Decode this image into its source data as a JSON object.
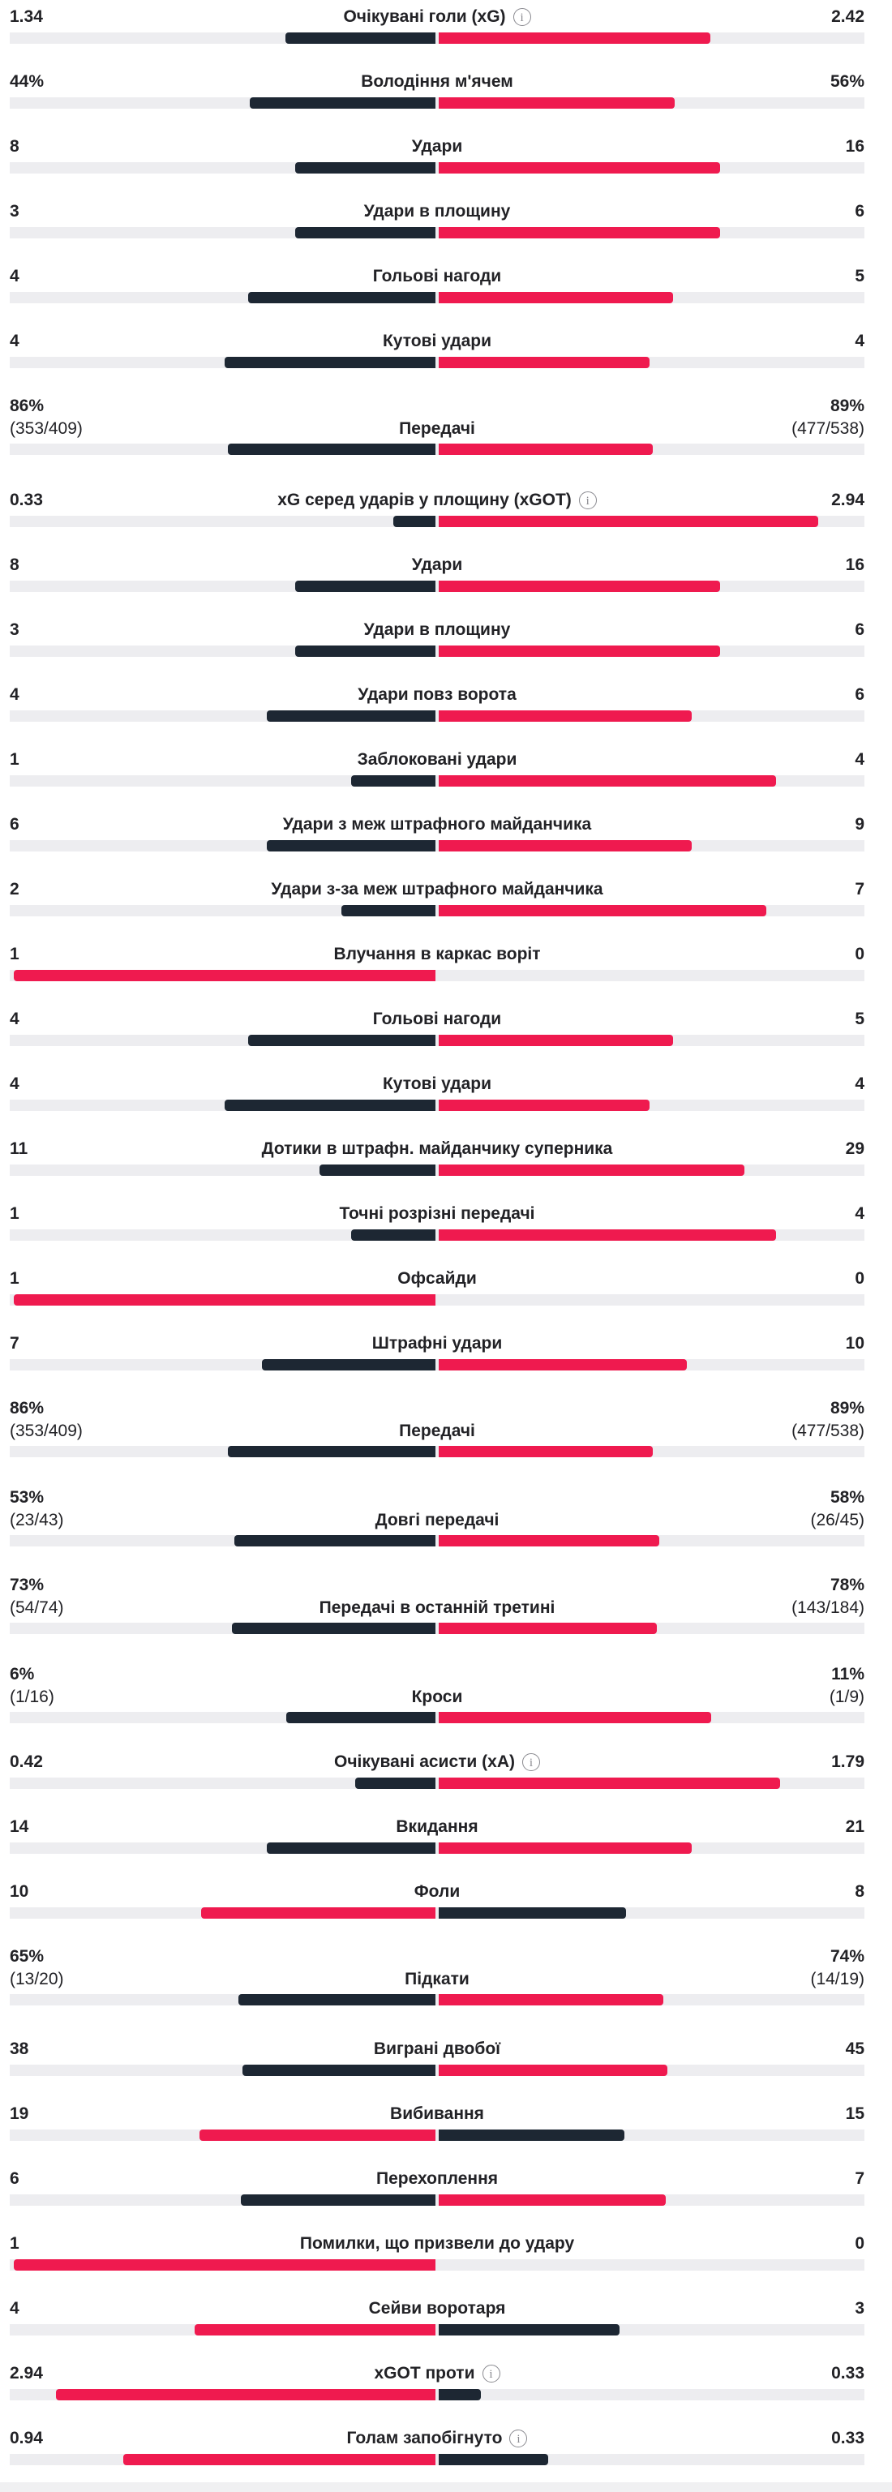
{
  "colors": {
    "home": "#1d2733",
    "away": "#ef1a4f",
    "track": "#ededf0"
  },
  "stats": [
    {
      "label": "Очікувані голи (xG)",
      "info": true,
      "home": "1.34",
      "away": "2.42",
      "hv": 1.34,
      "av": 2.42
    },
    {
      "label": "Володіння м'ячем",
      "home": "44%",
      "away": "56%",
      "hv": 44,
      "av": 56
    },
    {
      "label": "Удари",
      "home": "8",
      "away": "16",
      "hv": 8,
      "av": 16
    },
    {
      "label": "Удари в площину",
      "home": "3",
      "away": "6",
      "hv": 3,
      "av": 6
    },
    {
      "label": "Гольові нагоди",
      "home": "4",
      "away": "5",
      "hv": 4,
      "av": 5
    },
    {
      "label": "Кутові удари",
      "home": "4",
      "away": "4",
      "hv": 4,
      "av": 4
    },
    {
      "label": "Передачі",
      "home": "86%",
      "home_sub": "(353/409)",
      "away": "89%",
      "away_sub": "(477/538)",
      "hv": 86,
      "av": 89
    },
    {
      "label": "xG серед ударів у площину (xGOT)",
      "info": true,
      "home": "0.33",
      "away": "2.94",
      "hv": 0.33,
      "av": 2.94
    },
    {
      "label": "Удари",
      "home": "8",
      "away": "16",
      "hv": 8,
      "av": 16
    },
    {
      "label": "Удари в площину",
      "home": "3",
      "away": "6",
      "hv": 3,
      "av": 6
    },
    {
      "label": "Удари повз ворота",
      "home": "4",
      "away": "6",
      "hv": 4,
      "av": 6
    },
    {
      "label": "Заблоковані удари",
      "home": "1",
      "away": "4",
      "hv": 1,
      "av": 4
    },
    {
      "label": "Удари з меж штрафного майданчика",
      "home": "6",
      "away": "9",
      "hv": 6,
      "av": 9
    },
    {
      "label": "Удари з-за меж штрафного майданчика",
      "home": "2",
      "away": "7",
      "hv": 2,
      "av": 7
    },
    {
      "label": "Влучання в каркас воріт",
      "home": "1",
      "away": "0",
      "hv": 1,
      "av": 0,
      "lead": "home"
    },
    {
      "label": "Гольові нагоди",
      "home": "4",
      "away": "5",
      "hv": 4,
      "av": 5
    },
    {
      "label": "Кутові удари",
      "home": "4",
      "away": "4",
      "hv": 4,
      "av": 4
    },
    {
      "label": "Дотики в штрафн. майданчику суперника",
      "home": "11",
      "away": "29",
      "hv": 11,
      "av": 29
    },
    {
      "label": "Точні розрізні передачі",
      "home": "1",
      "away": "4",
      "hv": 1,
      "av": 4
    },
    {
      "label": "Офсайди",
      "home": "1",
      "away": "0",
      "hv": 1,
      "av": 0,
      "lead": "home"
    },
    {
      "label": "Штрафні удари",
      "home": "7",
      "away": "10",
      "hv": 7,
      "av": 10
    },
    {
      "label": "Передачі",
      "home": "86%",
      "home_sub": "(353/409)",
      "away": "89%",
      "away_sub": "(477/538)",
      "hv": 86,
      "av": 89
    },
    {
      "label": "Довгі передачі",
      "home": "53%",
      "home_sub": "(23/43)",
      "away": "58%",
      "away_sub": "(26/45)",
      "hv": 53,
      "av": 58
    },
    {
      "label": "Передачі в останній третині",
      "home": "73%",
      "home_sub": "(54/74)",
      "away": "78%",
      "away_sub": "(143/184)",
      "hv": 73,
      "av": 78
    },
    {
      "label": "Кроси",
      "home": "6%",
      "home_sub": "(1/16)",
      "away": "11%",
      "away_sub": "(1/9)",
      "hv": 6,
      "av": 11
    },
    {
      "label": "Очікувані асисти (xA)",
      "info": true,
      "home": "0.42",
      "away": "1.79",
      "hv": 0.42,
      "av": 1.79
    },
    {
      "label": "Вкидання",
      "home": "14",
      "away": "21",
      "hv": 14,
      "av": 21
    },
    {
      "label": "Фоли",
      "home": "10",
      "away": "8",
      "hv": 10,
      "av": 8,
      "lead": "home"
    },
    {
      "label": "Підкати",
      "home": "65%",
      "home_sub": "(13/20)",
      "away": "74%",
      "away_sub": "(14/19)",
      "hv": 65,
      "av": 74
    },
    {
      "label": "Виграні двобої",
      "home": "38",
      "away": "45",
      "hv": 38,
      "av": 45
    },
    {
      "label": "Вибивання",
      "home": "19",
      "away": "15",
      "hv": 19,
      "av": 15,
      "lead": "home"
    },
    {
      "label": "Перехоплення",
      "home": "6",
      "away": "7",
      "hv": 6,
      "av": 7
    },
    {
      "label": "Помилки, що призвели до удару",
      "home": "1",
      "away": "0",
      "hv": 1,
      "av": 0,
      "lead": "home"
    },
    {
      "label": "Сейви воротаря",
      "home": "4",
      "away": "3",
      "hv": 4,
      "av": 3,
      "lead": "home"
    },
    {
      "label": "xGOT проти",
      "info": true,
      "home": "2.94",
      "away": "0.33",
      "hv": 2.94,
      "av": 0.33,
      "lead": "home"
    },
    {
      "label": "Голам запобігнуто",
      "info": true,
      "home": "0.94",
      "away": "0.33",
      "hv": 0.94,
      "av": 0.33,
      "lead": "home"
    }
  ]
}
